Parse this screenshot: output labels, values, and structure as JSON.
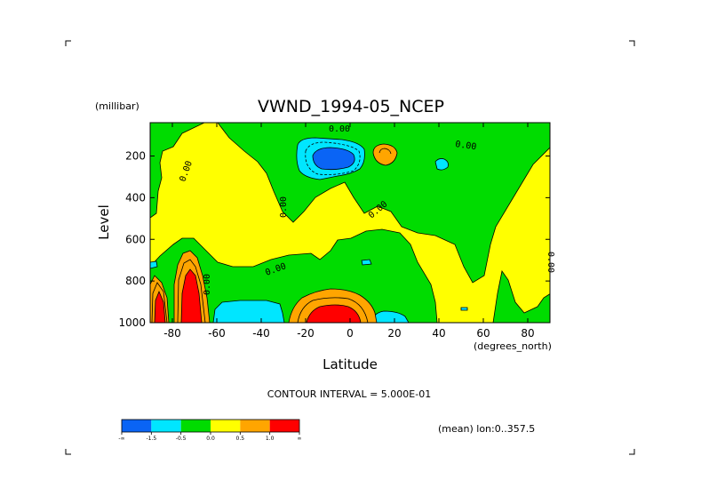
{
  "chart_data": {
    "type": "heatmap",
    "title": "VWND_1994-05_NCEP",
    "xlabel": "Latitude",
    "x_units": "(degrees_north)",
    "ylabel": "Level",
    "y_units": "(millibar)",
    "xlim": [
      -90,
      90
    ],
    "ylim": [
      1000,
      40
    ],
    "x_ticks": [
      -80,
      -60,
      -40,
      -20,
      0,
      20,
      40,
      60,
      80
    ],
    "x_tick_labels": [
      "-80",
      "-60",
      "-40",
      "-20",
      "0",
      "20",
      "40",
      "60",
      "80"
    ],
    "y_ticks": [
      200,
      400,
      600,
      800,
      1000
    ],
    "y_tick_labels": [
      "200",
      "400",
      "600",
      "800",
      "1000"
    ],
    "contour_interval_text": "CONTOUR INTERVAL = 5.000E-01",
    "annotation": "(mean) lon:0..357.5",
    "contour_labels": [
      "0.00",
      "0.00",
      "0.00",
      "0.00",
      "0.00",
      "0.00",
      "0.00",
      "0.00"
    ],
    "colorbar": {
      "colors": [
        "#0a64f5",
        "#00e6ff",
        "#00dc00",
        "#ffff00",
        "#ffa500",
        "#ff0000"
      ],
      "tick_labels": [
        "-∞",
        "-1.5",
        "-0.5",
        "0.0",
        "0.5",
        "1.0",
        "∞"
      ]
    },
    "features": [
      {
        "sign": "negative",
        "lat": -12,
        "level": 180,
        "level_bands": 3
      },
      {
        "sign": "positive",
        "lat": 15,
        "level": 170,
        "level_bands": 1
      },
      {
        "sign": "negative",
        "lat": 42,
        "level": 200,
        "level_bands": 1
      },
      {
        "sign": "positive",
        "lat": -87,
        "level": 900,
        "level_bands": 3
      },
      {
        "sign": "positive",
        "lat": -74,
        "level": 850,
        "level_bands": 3
      },
      {
        "sign": "negative",
        "lat": -45,
        "level": 930,
        "level_bands": 1
      },
      {
        "sign": "positive",
        "lat": -12,
        "level": 940,
        "level_bands": 3
      },
      {
        "sign": "negative",
        "lat": 18,
        "level": 960,
        "level_bands": 1
      },
      {
        "sign": "positive",
        "lat": 62,
        "level": 900,
        "level_bands": 0
      }
    ]
  },
  "corner_marks": "crop-marks"
}
